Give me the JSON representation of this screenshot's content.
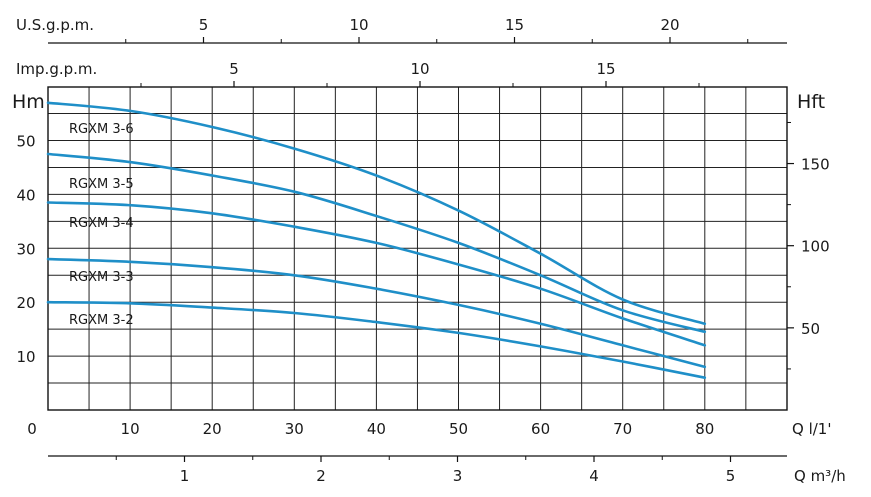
{
  "chart_data": {
    "type": "line",
    "x_axis_bottom": {
      "label": "Q l/1'",
      "range": [
        0,
        90
      ],
      "ticks": [
        0,
        10,
        20,
        30,
        40,
        50,
        60,
        70,
        80
      ]
    },
    "x_axis_m3h": {
      "label": "Q m³/h",
      "ticks": [
        1,
        2,
        3,
        4,
        5
      ]
    },
    "x_axis_usgpm": {
      "label": "U.S.g.p.m.",
      "ticks": [
        5,
        10,
        15,
        20
      ]
    },
    "x_axis_impgpm": {
      "label": "Imp.g.p.m.",
      "ticks": [
        5,
        10,
        15
      ]
    },
    "y_axis_left": {
      "label": "Hm",
      "range": [
        0,
        57
      ],
      "ticks": [
        10,
        20,
        30,
        40,
        50
      ]
    },
    "y_axis_right": {
      "label": "Hft",
      "ticks": [
        50,
        100,
        150
      ]
    },
    "grid": true,
    "line_color": "#1f8fc8",
    "series": [
      {
        "name": "RGXM 3-6",
        "x": [
          0,
          10,
          20,
          30,
          40,
          50,
          60,
          70,
          80
        ],
        "y": [
          57,
          55.5,
          52.5,
          48.5,
          43.5,
          37,
          29,
          20.5,
          16
        ]
      },
      {
        "name": "RGXM 3-5",
        "x": [
          0,
          10,
          20,
          30,
          40,
          50,
          60,
          70,
          80
        ],
        "y": [
          47.5,
          46,
          43.5,
          40.5,
          36,
          31,
          25,
          18.5,
          14.5
        ]
      },
      {
        "name": "RGXM 3-4",
        "x": [
          0,
          10,
          20,
          30,
          40,
          50,
          60,
          70,
          80
        ],
        "y": [
          38.5,
          38,
          36.5,
          34,
          31,
          27,
          22.5,
          17,
          12
        ]
      },
      {
        "name": "RGXM 3-3",
        "x": [
          0,
          10,
          20,
          30,
          40,
          50,
          60,
          70,
          80
        ],
        "y": [
          28,
          27.5,
          26.5,
          25,
          22.5,
          19.5,
          16,
          12,
          8
        ]
      },
      {
        "name": "RGXM 3-2",
        "x": [
          0,
          10,
          20,
          30,
          40,
          50,
          60,
          70,
          80
        ],
        "y": [
          20,
          19.8,
          19,
          18,
          16.3,
          14.3,
          11.8,
          9,
          6
        ]
      }
    ]
  }
}
